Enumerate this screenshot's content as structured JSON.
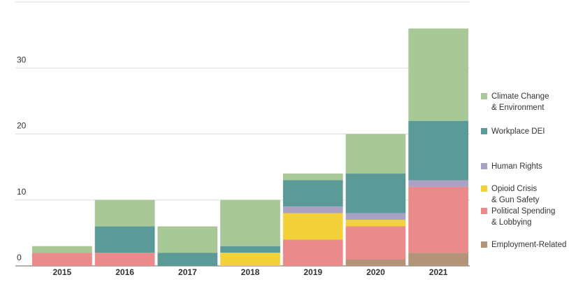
{
  "chart_data": {
    "type": "stacked_bar",
    "categories": [
      "2015",
      "2016",
      "2017",
      "2018",
      "2019",
      "2020",
      "2021"
    ],
    "series": [
      {
        "name": "Employment-Related",
        "color": "#b39479",
        "values": [
          0,
          0,
          0,
          0,
          0,
          1,
          2
        ]
      },
      {
        "name": "Political Spending\n& Lobbying",
        "color": "#ea8a8a",
        "values": [
          2,
          2,
          0,
          0,
          4,
          5,
          10
        ]
      },
      {
        "name": "Opioid Crisis\n& Gun Safety",
        "color": "#f2d13b",
        "values": [
          0,
          0,
          0,
          2,
          4,
          1,
          0
        ]
      },
      {
        "name": "Human Rights",
        "color": "#a9a2c4",
        "values": [
          0,
          0,
          0,
          0,
          1,
          1,
          1
        ]
      },
      {
        "name": "Workplace DEI",
        "color": "#5b9a96",
        "values": [
          0,
          4,
          2,
          1,
          4,
          6,
          9
        ]
      },
      {
        "name": "Climate Change\n& Environment",
        "color": "#a8c898",
        "values": [
          1,
          4,
          4,
          7,
          1,
          6,
          14
        ]
      }
    ],
    "ylim": [
      0,
      40
    ],
    "yticks": [
      0,
      10,
      20,
      30,
      40
    ],
    "grid": true
  }
}
